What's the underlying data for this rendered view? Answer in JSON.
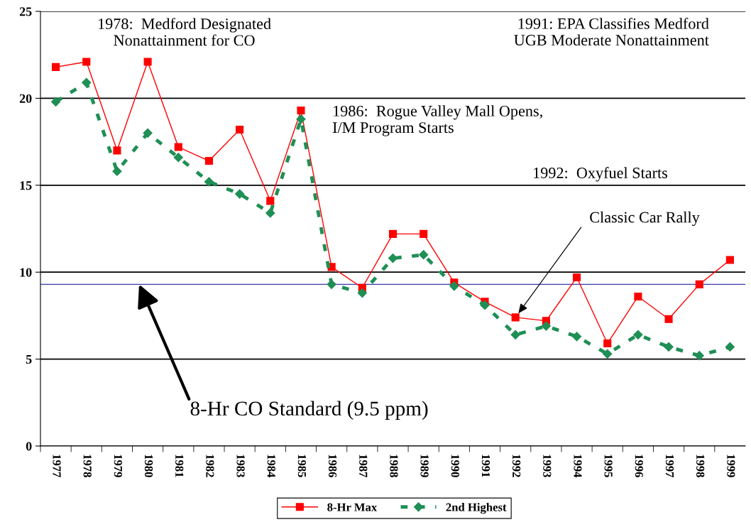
{
  "chart_data": {
    "type": "line",
    "categories": [
      "1977",
      "1978",
      "1979",
      "1980",
      "1981",
      "1982",
      "1983",
      "1984",
      "1985",
      "1986",
      "1987",
      "1988",
      "1989",
      "1990",
      "1991",
      "1992",
      "1993",
      "1994",
      "1995",
      "1996",
      "1997",
      "1998",
      "1999"
    ],
    "series": [
      {
        "name": "8-Hr Max",
        "color": "#ff0000",
        "marker": "square",
        "line_style": "solid",
        "values": [
          21.8,
          22.1,
          17.0,
          22.1,
          17.2,
          16.4,
          18.2,
          14.1,
          19.3,
          10.3,
          9.1,
          12.2,
          12.2,
          9.4,
          8.3,
          7.4,
          7.2,
          9.7,
          5.9,
          8.6,
          7.3,
          9.3,
          10.7
        ]
      },
      {
        "name": "2nd Highest",
        "color": "#1f8f55",
        "marker": "diamond",
        "line_style": "dashed",
        "values": [
          19.8,
          20.9,
          15.8,
          18.0,
          16.6,
          15.2,
          14.5,
          13.4,
          18.8,
          9.3,
          8.8,
          10.8,
          11.0,
          9.2,
          8.1,
          6.4,
          6.9,
          6.3,
          5.3,
          6.4,
          5.7,
          5.2,
          5.7
        ]
      }
    ],
    "ylim": [
      0,
      25
    ],
    "yticks": [
      0,
      5,
      10,
      15,
      20,
      25
    ],
    "grid": "y",
    "legend": "bottom",
    "ref_lines": [
      {
        "axis": "y",
        "value": 9.3,
        "label": "8-Hr CO Standard (9.5 ppm)",
        "color": "#3a3aa8"
      }
    ],
    "annotations": [
      "1978:  Medford Designated\nNonattainment for CO",
      "1991: EPA Classifies Medford\nUGB Moderate Nonattainment",
      "1986:  Rogue Valley Mall Opens,\nI/M Program Starts",
      "1992:  Oxyfuel Starts",
      {
        "text": "Classic Car Rally",
        "x": "1992",
        "y": 7.4
      }
    ]
  }
}
